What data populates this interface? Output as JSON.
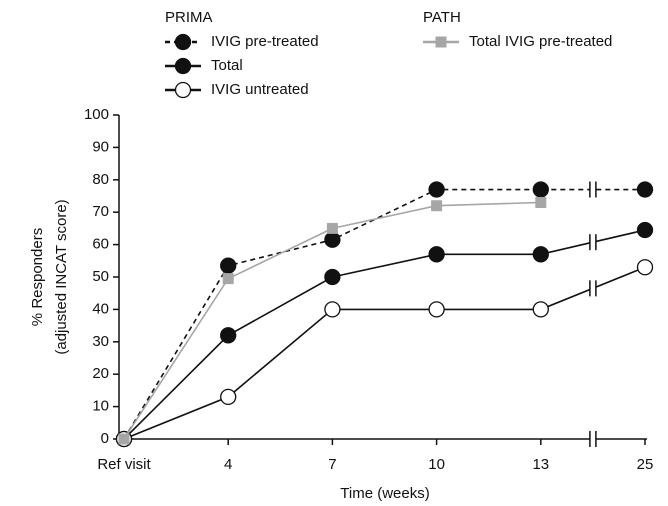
{
  "chart_data": {
    "type": "line",
    "categories": [
      "Ref visit",
      "4",
      "7",
      "10",
      "13",
      "25"
    ],
    "xlabel": "Time (weeks)",
    "ylabel": [
      "% Responders",
      "(adjusted INCAT score)"
    ],
    "ylim": [
      0,
      100
    ],
    "yticks": [
      0,
      10,
      20,
      30,
      40,
      50,
      60,
      70,
      80,
      90,
      100
    ],
    "axis_break": true,
    "legend_titles": [
      "PRIMA",
      "PATH"
    ],
    "series": [
      {
        "name": "IVIG pre-treated",
        "study": "PRIMA",
        "color": "#111111",
        "dashed": true,
        "marker": "filled-circle",
        "values": [
          0,
          53.5,
          61.5,
          77,
          77,
          77
        ]
      },
      {
        "name": "Total",
        "study": "PRIMA",
        "color": "#111111",
        "dashed": false,
        "marker": "filled-circle",
        "values": [
          0,
          32,
          50,
          57,
          57,
          64.5
        ]
      },
      {
        "name": "IVIG untreated",
        "study": "PRIMA",
        "color": "#111111",
        "dashed": false,
        "marker": "open-circle",
        "values": [
          0,
          13,
          40,
          40,
          40,
          53
        ]
      },
      {
        "name": "Total IVIG pre-treated",
        "study": "PATH",
        "color": "#a6a6a6",
        "dashed": false,
        "marker": "square",
        "values": [
          0,
          49.5,
          65,
          72,
          73,
          null
        ]
      }
    ]
  }
}
